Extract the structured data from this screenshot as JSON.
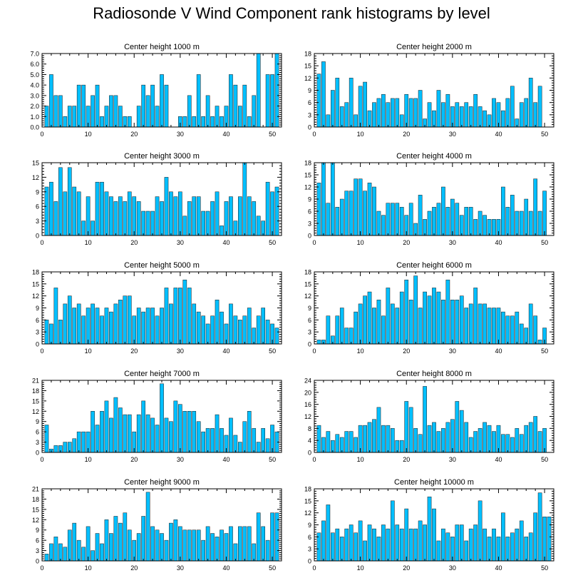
{
  "title": "Radiosonde V Wind Component rank histograms by level",
  "colors": {
    "bar": "#00bfff",
    "bar_edge": "#1a1a1a",
    "axis": "#000000",
    "background": "#ffffff"
  },
  "chart_data": [
    {
      "type": "bar",
      "title": "Center height 1000 m",
      "x": [
        1,
        2,
        3,
        4,
        5,
        6,
        7,
        8,
        9,
        10,
        11,
        12,
        13,
        14,
        15,
        16,
        17,
        18,
        19,
        20,
        21,
        22,
        23,
        24,
        25,
        26,
        27,
        28,
        29,
        30,
        31,
        32,
        33,
        34,
        35,
        36,
        37,
        38,
        39,
        40,
        41,
        42,
        43,
        44,
        45,
        46,
        47,
        48,
        49,
        50,
        51
      ],
      "values": [
        2,
        5,
        3,
        3,
        1,
        2,
        2,
        4,
        4,
        2,
        3,
        4,
        1,
        2,
        3,
        3,
        2,
        1,
        1,
        0,
        2,
        4,
        3,
        4,
        2,
        5,
        4,
        0,
        0,
        1,
        1,
        3,
        1,
        5,
        1,
        3,
        1,
        2,
        1,
        2,
        5,
        4,
        2,
        4,
        1,
        3,
        7,
        0,
        5,
        5,
        7
      ],
      "xlim": [
        0,
        52
      ],
      "ylim": [
        0,
        7
      ],
      "xticks": [
        0,
        10,
        20,
        30,
        40,
        50
      ],
      "yticks": [
        "0.0",
        "1.0",
        "2.0",
        "3.0",
        "4.0",
        "5.0",
        "6.0",
        "7.0"
      ],
      "xlabel": "",
      "ylabel": ""
    },
    {
      "type": "bar",
      "title": "Center height 2000 m",
      "x": [
        1,
        2,
        3,
        4,
        5,
        6,
        7,
        8,
        9,
        10,
        11,
        12,
        13,
        14,
        15,
        16,
        17,
        18,
        19,
        20,
        21,
        22,
        23,
        24,
        25,
        26,
        27,
        28,
        29,
        30,
        31,
        32,
        33,
        34,
        35,
        36,
        37,
        38,
        39,
        40,
        41,
        42,
        43,
        44,
        45,
        46,
        47,
        48,
        49,
        50,
        51
      ],
      "values": [
        13,
        16,
        3,
        9,
        12,
        5,
        6,
        12,
        3,
        10,
        11,
        4,
        6,
        7,
        8,
        6,
        7,
        7,
        3,
        8,
        7,
        7,
        9,
        2,
        6,
        4,
        9,
        6,
        8,
        5,
        6,
        5,
        6,
        5,
        8,
        5,
        4,
        3,
        7,
        6,
        4,
        7,
        10,
        2,
        6,
        7,
        12,
        6,
        10,
        0,
        0
      ],
      "xlim": [
        0,
        52
      ],
      "ylim": [
        0,
        18
      ],
      "xticks": [
        0,
        10,
        20,
        30,
        40,
        50
      ],
      "yticks": [
        "0",
        "3",
        "6",
        "9",
        "12",
        "15",
        "18"
      ],
      "xlabel": "",
      "ylabel": ""
    },
    {
      "type": "bar",
      "title": "Center height 3000 m",
      "x": [
        1,
        2,
        3,
        4,
        5,
        6,
        7,
        8,
        9,
        10,
        11,
        12,
        13,
        14,
        15,
        16,
        17,
        18,
        19,
        20,
        21,
        22,
        23,
        24,
        25,
        26,
        27,
        28,
        29,
        30,
        31,
        32,
        33,
        34,
        35,
        36,
        37,
        38,
        39,
        40,
        41,
        42,
        43,
        44,
        45,
        46,
        47,
        48,
        49,
        50,
        51
      ],
      "values": [
        10,
        11,
        7,
        14,
        9,
        14,
        10,
        9,
        3,
        8,
        3,
        11,
        11,
        9,
        8,
        7,
        8,
        7,
        9,
        8,
        7,
        5,
        5,
        5,
        8,
        7,
        12,
        9,
        8,
        9,
        4,
        7,
        8,
        8,
        5,
        5,
        7,
        9,
        2,
        7,
        8,
        3,
        8,
        15,
        8,
        7,
        4,
        3,
        11,
        9,
        10
      ],
      "xlim": [
        0,
        52
      ],
      "ylim": [
        0,
        15
      ],
      "xticks": [
        0,
        10,
        20,
        30,
        40,
        50
      ],
      "yticks": [
        "0",
        "3",
        "6",
        "9",
        "12",
        "15"
      ],
      "xlabel": "",
      "ylabel": ""
    },
    {
      "type": "bar",
      "title": "Center height 4000 m",
      "x": [
        1,
        2,
        3,
        4,
        5,
        6,
        7,
        8,
        9,
        10,
        11,
        12,
        13,
        14,
        15,
        16,
        17,
        18,
        19,
        20,
        21,
        22,
        23,
        24,
        25,
        26,
        27,
        28,
        29,
        30,
        31,
        32,
        33,
        34,
        35,
        36,
        37,
        38,
        39,
        40,
        41,
        42,
        43,
        44,
        45,
        46,
        47,
        48,
        49,
        50,
        51
      ],
      "values": [
        13,
        18,
        8,
        18,
        7,
        9,
        11,
        11,
        14,
        14,
        11,
        13,
        12,
        6,
        5,
        8,
        8,
        8,
        7,
        5,
        8,
        3,
        10,
        4,
        6,
        7,
        8,
        12,
        7,
        9,
        8,
        5,
        7,
        7,
        4,
        6,
        5,
        4,
        4,
        4,
        12,
        7,
        10,
        6,
        6,
        9,
        6,
        14,
        6,
        11,
        0
      ],
      "xlim": [
        0,
        52
      ],
      "ylim": [
        0,
        18
      ],
      "xticks": [
        0,
        10,
        20,
        30,
        40,
        50
      ],
      "yticks": [
        "0",
        "3",
        "6",
        "9",
        "12",
        "15",
        "18"
      ],
      "xlabel": "",
      "ylabel": ""
    },
    {
      "type": "bar",
      "title": "Center height 5000 m",
      "x": [
        1,
        2,
        3,
        4,
        5,
        6,
        7,
        8,
        9,
        10,
        11,
        12,
        13,
        14,
        15,
        16,
        17,
        18,
        19,
        20,
        21,
        22,
        23,
        24,
        25,
        26,
        27,
        28,
        29,
        30,
        31,
        32,
        33,
        34,
        35,
        36,
        37,
        38,
        39,
        40,
        41,
        42,
        43,
        44,
        45,
        46,
        47,
        48,
        49,
        50,
        51
      ],
      "values": [
        6,
        5,
        14,
        6,
        10,
        12,
        9,
        10,
        7,
        9,
        10,
        9,
        7,
        9,
        8,
        10,
        11,
        12,
        12,
        7,
        9,
        8,
        9,
        9,
        7,
        9,
        14,
        10,
        14,
        14,
        16,
        14,
        10,
        8,
        7,
        5,
        7,
        11,
        8,
        5,
        10,
        7,
        6,
        7,
        9,
        4,
        7,
        9,
        6,
        5,
        4
      ],
      "xlim": [
        0,
        52
      ],
      "ylim": [
        0,
        18
      ],
      "xticks": [
        0,
        10,
        20,
        30,
        40,
        50
      ],
      "yticks": [
        "0",
        "3",
        "6",
        "9",
        "12",
        "15",
        "18"
      ],
      "xlabel": "",
      "ylabel": ""
    },
    {
      "type": "bar",
      "title": "Center height 6000 m",
      "x": [
        1,
        2,
        3,
        4,
        5,
        6,
        7,
        8,
        9,
        10,
        11,
        12,
        13,
        14,
        15,
        16,
        17,
        18,
        19,
        20,
        21,
        22,
        23,
        24,
        25,
        26,
        27,
        28,
        29,
        30,
        31,
        32,
        33,
        34,
        35,
        36,
        37,
        38,
        39,
        40,
        41,
        42,
        43,
        44,
        45,
        46,
        47,
        48,
        49,
        50,
        51
      ],
      "values": [
        1,
        1,
        7,
        2,
        7,
        9,
        4,
        4,
        8,
        10,
        12,
        13,
        9,
        11,
        7,
        14,
        10,
        9,
        13,
        16,
        11,
        17,
        9,
        13,
        12,
        14,
        13,
        11,
        16,
        11,
        11,
        12,
        9,
        10,
        14,
        10,
        10,
        9,
        9,
        9,
        8,
        7,
        7,
        8,
        5,
        4,
        10,
        7,
        1,
        4,
        0
      ],
      "xlim": [
        0,
        52
      ],
      "ylim": [
        0,
        18
      ],
      "xticks": [
        0,
        10,
        20,
        30,
        40,
        50
      ],
      "yticks": [
        "0",
        "3",
        "6",
        "9",
        "12",
        "15",
        "18"
      ],
      "xlabel": "",
      "ylabel": ""
    },
    {
      "type": "bar",
      "title": "Center height 7000 m",
      "x": [
        1,
        2,
        3,
        4,
        5,
        6,
        7,
        8,
        9,
        10,
        11,
        12,
        13,
        14,
        15,
        16,
        17,
        18,
        19,
        20,
        21,
        22,
        23,
        24,
        25,
        26,
        27,
        28,
        29,
        30,
        31,
        32,
        33,
        34,
        35,
        36,
        37,
        38,
        39,
        40,
        41,
        42,
        43,
        44,
        45,
        46,
        47,
        48,
        49,
        50,
        51
      ],
      "values": [
        8,
        1,
        2,
        2,
        3,
        3,
        4,
        6,
        6,
        6,
        12,
        8,
        12,
        15,
        10,
        16,
        13,
        11,
        11,
        6,
        11,
        15,
        11,
        10,
        8,
        20,
        10,
        9,
        15,
        14,
        12,
        12,
        12,
        9,
        6,
        7,
        7,
        11,
        7,
        5,
        10,
        5,
        3,
        9,
        12,
        7,
        3,
        7,
        4,
        8,
        6
      ],
      "xlim": [
        0,
        52
      ],
      "ylim": [
        0,
        21
      ],
      "xticks": [
        0,
        10,
        20,
        30,
        40,
        50
      ],
      "yticks": [
        "0",
        "3",
        "6",
        "9",
        "12",
        "15",
        "18",
        "21"
      ],
      "xlabel": "",
      "ylabel": ""
    },
    {
      "type": "bar",
      "title": "Center height 8000 m",
      "x": [
        1,
        2,
        3,
        4,
        5,
        6,
        7,
        8,
        9,
        10,
        11,
        12,
        13,
        14,
        15,
        16,
        17,
        18,
        19,
        20,
        21,
        22,
        23,
        24,
        25,
        26,
        27,
        28,
        29,
        30,
        31,
        32,
        33,
        34,
        35,
        36,
        37,
        38,
        39,
        40,
        41,
        42,
        43,
        44,
        45,
        46,
        47,
        48,
        49,
        50,
        51
      ],
      "values": [
        9,
        5,
        7,
        4,
        6,
        5,
        7,
        7,
        5,
        9,
        9,
        10,
        11,
        15,
        9,
        9,
        8,
        4,
        4,
        17,
        15,
        8,
        6,
        22,
        9,
        10,
        7,
        8,
        10,
        11,
        17,
        14,
        10,
        5,
        7,
        8,
        10,
        9,
        7,
        9,
        6,
        6,
        5,
        8,
        6,
        9,
        10,
        12,
        7,
        8,
        0
      ],
      "xlim": [
        0,
        52
      ],
      "ylim": [
        0,
        24
      ],
      "xticks": [
        0,
        10,
        20,
        30,
        40,
        50
      ],
      "yticks": [
        "0",
        "4",
        "8",
        "12",
        "16",
        "20",
        "24"
      ],
      "xlabel": "",
      "ylabel": ""
    },
    {
      "type": "bar",
      "title": "Center height 9000 m",
      "x": [
        1,
        2,
        3,
        4,
        5,
        6,
        7,
        8,
        9,
        10,
        11,
        12,
        13,
        14,
        15,
        16,
        17,
        18,
        19,
        20,
        21,
        22,
        23,
        24,
        25,
        26,
        27,
        28,
        29,
        30,
        31,
        32,
        33,
        34,
        35,
        36,
        37,
        38,
        39,
        40,
        41,
        42,
        43,
        44,
        45,
        46,
        47,
        48,
        49,
        50,
        51
      ],
      "values": [
        2,
        5,
        7,
        5,
        4,
        9,
        11,
        6,
        4,
        10,
        3,
        8,
        5,
        12,
        8,
        13,
        11,
        14,
        9,
        6,
        8,
        13,
        20,
        10,
        9,
        8,
        6,
        11,
        12,
        10,
        9,
        9,
        9,
        9,
        6,
        10,
        8,
        7,
        9,
        8,
        10,
        5,
        10,
        10,
        10,
        5,
        14,
        10,
        6,
        14,
        14
      ],
      "xlim": [
        0,
        52
      ],
      "ylim": [
        0,
        21
      ],
      "xticks": [
        0,
        10,
        20,
        30,
        40,
        50
      ],
      "yticks": [
        "0",
        "3",
        "6",
        "9",
        "12",
        "15",
        "18",
        "21"
      ],
      "xlabel": "",
      "ylabel": ""
    },
    {
      "type": "bar",
      "title": "Center height 10000 m",
      "x": [
        1,
        2,
        3,
        4,
        5,
        6,
        7,
        8,
        9,
        10,
        11,
        12,
        13,
        14,
        15,
        16,
        17,
        18,
        19,
        20,
        21,
        22,
        23,
        24,
        25,
        26,
        27,
        28,
        29,
        30,
        31,
        32,
        33,
        34,
        35,
        36,
        37,
        38,
        39,
        40,
        41,
        42,
        43,
        44,
        45,
        46,
        47,
        48,
        49,
        50,
        51
      ],
      "values": [
        7,
        10,
        14,
        7,
        8,
        6,
        8,
        9,
        7,
        10,
        5,
        9,
        8,
        6,
        9,
        8,
        15,
        9,
        8,
        13,
        8,
        8,
        10,
        9,
        16,
        13,
        5,
        8,
        7,
        6,
        9,
        9,
        5,
        8,
        9,
        15,
        8,
        6,
        8,
        6,
        12,
        6,
        7,
        8,
        10,
        6,
        7,
        12,
        17,
        11,
        11
      ],
      "xlim": [
        0,
        52
      ],
      "ylim": [
        0,
        18
      ],
      "xticks": [
        0,
        10,
        20,
        30,
        40,
        50
      ],
      "yticks": [
        "0",
        "3",
        "6",
        "9",
        "12",
        "15",
        "18"
      ],
      "xlabel": "",
      "ylabel": ""
    }
  ]
}
